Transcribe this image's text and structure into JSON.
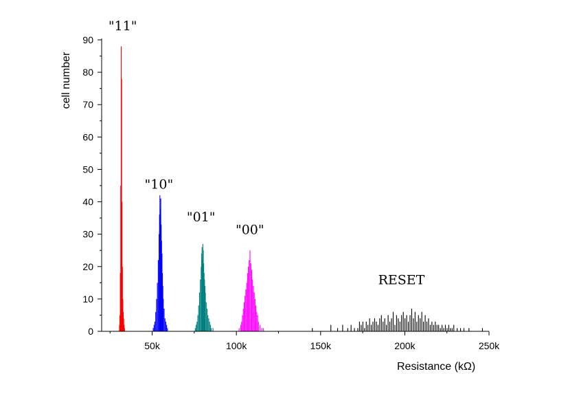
{
  "chart_data": {
    "type": "histogram",
    "title": "",
    "xlabel": "Resistance (kΩ)",
    "ylabel": "cell number",
    "xlim": [
      20,
      250
    ],
    "ylim": [
      0,
      90
    ],
    "x_unit": "k",
    "x_ticks": [
      50,
      100,
      150,
      200,
      250
    ],
    "x_tick_labels": [
      "50k",
      "100k",
      "150k",
      "200k",
      "250k"
    ],
    "y_ticks": [
      0,
      10,
      20,
      30,
      40,
      50,
      60,
      70,
      80,
      90
    ],
    "y_tick_labels": [
      "0",
      "10",
      "20",
      "30",
      "40",
      "50",
      "60",
      "70",
      "80",
      "90"
    ],
    "grid": false,
    "bin_width_kohm": 0.25,
    "series": [
      {
        "name": "\"11\"",
        "label_x": 32.5,
        "label_y": 93,
        "color": "#ff0000",
        "x": [
          30.5,
          30.75,
          31.0,
          31.25,
          31.5,
          31.75,
          32.0,
          32.25,
          32.5,
          32.75,
          33.0,
          33.25,
          33.5
        ],
        "values": [
          2,
          5,
          18,
          45,
          88,
          78,
          40,
          20,
          10,
          6,
          4,
          2,
          1
        ]
      },
      {
        "name": "\"10\"",
        "label_x": 54,
        "label_y": 44,
        "color": "#0000ff",
        "x": [
          50.5,
          51.0,
          51.5,
          52.0,
          52.5,
          53.0,
          53.5,
          54.0,
          54.25,
          54.5,
          54.75,
          55.0,
          55.25,
          55.5,
          55.75,
          56.0,
          56.25,
          56.5,
          57.0,
          57.5,
          58.0,
          58.5,
          59.0
        ],
        "values": [
          1,
          2,
          3,
          6,
          10,
          15,
          22,
          30,
          36,
          42,
          38,
          41,
          33,
          28,
          24,
          18,
          14,
          10,
          7,
          4,
          3,
          2,
          1
        ]
      },
      {
        "name": "\"01\"",
        "label_x": 79,
        "label_y": 34,
        "color": "#008080",
        "x": [
          75.5,
          76.0,
          76.5,
          77.0,
          77.5,
          78.0,
          78.5,
          79.0,
          79.25,
          79.5,
          79.75,
          80.0,
          80.25,
          80.5,
          80.75,
          81.0,
          81.25,
          81.5,
          82.0,
          82.5,
          83.0,
          83.5,
          84.0,
          84.5,
          85.0,
          86.0
        ],
        "values": [
          1,
          2,
          3,
          5,
          8,
          12,
          16,
          20,
          24,
          26,
          22,
          27,
          25,
          21,
          18,
          16,
          14,
          12,
          9,
          7,
          5,
          4,
          3,
          2,
          1,
          1
        ]
      },
      {
        "name": "\"00\"",
        "label_x": 108,
        "label_y": 30,
        "color": "#ff00ff",
        "x": [
          101.5,
          102.5,
          103.0,
          103.5,
          104.0,
          104.5,
          105.0,
          105.5,
          106.0,
          106.5,
          107.0,
          107.5,
          108.0,
          108.5,
          109.0,
          109.5,
          110.0,
          110.5,
          111.0,
          111.5,
          112.0,
          112.5,
          113.0,
          114.0,
          115.0,
          116.0
        ],
        "values": [
          1,
          2,
          3,
          5,
          7,
          9,
          11,
          13,
          15,
          18,
          20,
          22,
          25,
          21,
          19,
          16,
          14,
          12,
          10,
          8,
          6,
          5,
          3,
          2,
          1,
          1
        ]
      },
      {
        "name": "RESET",
        "label_x": 198,
        "label_y": 14.5,
        "color": "#000000",
        "x": [
          145,
          156,
          160,
          163,
          166,
          168,
          170,
          172,
          173,
          174,
          175,
          176,
          177,
          178,
          179,
          180,
          181,
          182,
          183,
          184,
          185,
          186,
          187,
          188,
          189,
          190,
          191,
          192,
          193,
          194,
          195,
          196,
          197,
          198,
          199,
          200,
          201,
          202,
          203,
          204,
          205,
          206,
          207,
          208,
          209,
          210,
          211,
          212,
          213,
          214,
          215,
          216,
          217,
          218,
          219,
          220,
          221,
          222,
          223,
          224,
          225,
          226,
          227,
          228,
          229,
          231,
          233,
          235,
          238,
          246
        ],
        "values": [
          1,
          2,
          1,
          2,
          1,
          2,
          1,
          1,
          3,
          2,
          3,
          1,
          3,
          2,
          4,
          2,
          3,
          4,
          3,
          2,
          4,
          5,
          3,
          4,
          2,
          5,
          3,
          4,
          6,
          2,
          5,
          4,
          3,
          5,
          6,
          4,
          5,
          3,
          5,
          7,
          4,
          6,
          3,
          5,
          4,
          6,
          3,
          5,
          3,
          4,
          2,
          3,
          2,
          3,
          2,
          2,
          1,
          2,
          1,
          2,
          1,
          2,
          1,
          1,
          2,
          1,
          1,
          1,
          1,
          1
        ]
      }
    ]
  }
}
